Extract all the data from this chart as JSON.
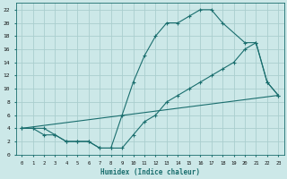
{
  "xlabel": "Humidex (Indice chaleur)",
  "bg_color": "#cce8e8",
  "grid_color": "#aacece",
  "line_color": "#1a6e6e",
  "xlim": [
    -0.5,
    23.5
  ],
  "ylim": [
    0,
    23
  ],
  "xticks": [
    0,
    1,
    2,
    3,
    4,
    5,
    6,
    7,
    8,
    9,
    10,
    11,
    12,
    13,
    14,
    15,
    16,
    17,
    18,
    19,
    20,
    21,
    22,
    23
  ],
  "yticks": [
    0,
    2,
    4,
    6,
    8,
    10,
    12,
    14,
    16,
    18,
    20,
    22
  ],
  "line1_x": [
    0,
    1,
    2,
    3,
    4,
    5,
    6,
    7,
    8,
    9,
    10,
    11,
    12,
    13,
    14,
    15,
    16,
    17,
    18,
    20,
    21,
    22,
    23
  ],
  "line1_y": [
    4,
    4,
    4,
    3,
    2,
    2,
    2,
    1,
    1,
    6,
    11,
    15,
    18,
    20,
    20,
    21,
    22,
    22,
    20,
    17,
    17,
    11,
    9
  ],
  "line2_x": [
    0,
    1,
    2,
    3,
    4,
    5,
    6,
    7,
    8,
    9,
    10,
    11,
    12,
    13,
    14,
    15,
    16,
    17,
    18,
    19,
    20,
    21,
    22,
    23
  ],
  "line2_y": [
    4,
    4,
    3,
    3,
    2,
    2,
    2,
    1,
    1,
    1,
    3,
    5,
    6,
    8,
    9,
    10,
    11,
    12,
    13,
    14,
    16,
    17,
    11,
    9
  ],
  "line3_x": [
    0,
    23
  ],
  "line3_y": [
    4,
    9
  ]
}
